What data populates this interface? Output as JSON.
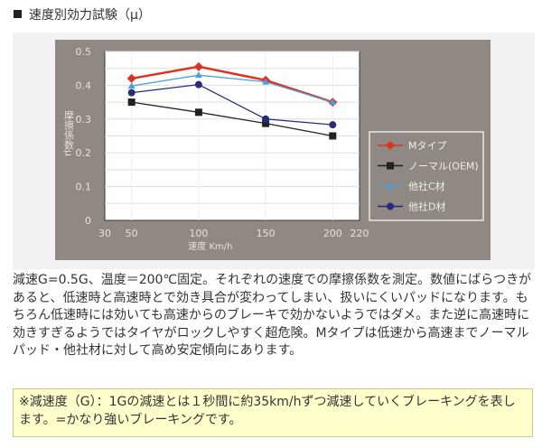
{
  "title": "速度別効力試験（μ）",
  "chart_data": {
    "type": "line",
    "xlabel": "速度 Km/h",
    "ylabel": "摩擦係数μ",
    "xlim": [
      30,
      220
    ],
    "ylim": [
      0,
      0.5
    ],
    "x_ticks": [
      "30",
      "50",
      "100",
      "150",
      "200",
      "220"
    ],
    "y_ticks": [
      "0",
      "0.1",
      "0.2",
      "0.3",
      "0.4",
      "0.5"
    ],
    "x": [
      50,
      100,
      150,
      200
    ],
    "grid": true,
    "legend": "right",
    "series": [
      {
        "name": "Mタイプ",
        "values": [
          0.42,
          0.455,
          0.415,
          0.35
        ],
        "color": "#e03020",
        "marker": "diamond"
      },
      {
        "name": "ノーマル(OEM)",
        "values": [
          0.35,
          0.32,
          0.287,
          0.25
        ],
        "color": "#222222",
        "marker": "square"
      },
      {
        "name": "他社C材",
        "values": [
          0.398,
          0.43,
          0.41,
          0.35
        ],
        "color": "#4aa0d8",
        "marker": "triangle"
      },
      {
        "name": "他社D材",
        "values": [
          0.378,
          0.402,
          0.3,
          0.283
        ],
        "color": "#2a2a7a",
        "marker": "circle"
      }
    ],
    "colors": {
      "panel": "#8f8884",
      "plot_bg": "#ffffff",
      "axis_text": "#e6e2de"
    }
  },
  "description": "減速G=0.5G、温度＝200℃固定。それぞれの速度での摩擦係数を測定。数値にばらつきがあると、低速時と高速時とで効き具合が変わってしまい、扱いにくいパッドになります。もちろん低速時には効いても高速からのブレーキで効かないようではダメ。また逆に高速時に効きすぎるようではタイヤがロックしやすく超危険。Mタイプは低速から高速までノーマルパッド・他社材に対して高め安定傾向にあります。",
  "note": "※減速度（G）：1Gの減速とは１秒間に約35km/hずつ減速していくブレーキングを表します。=かなり強いブレーキングです。"
}
